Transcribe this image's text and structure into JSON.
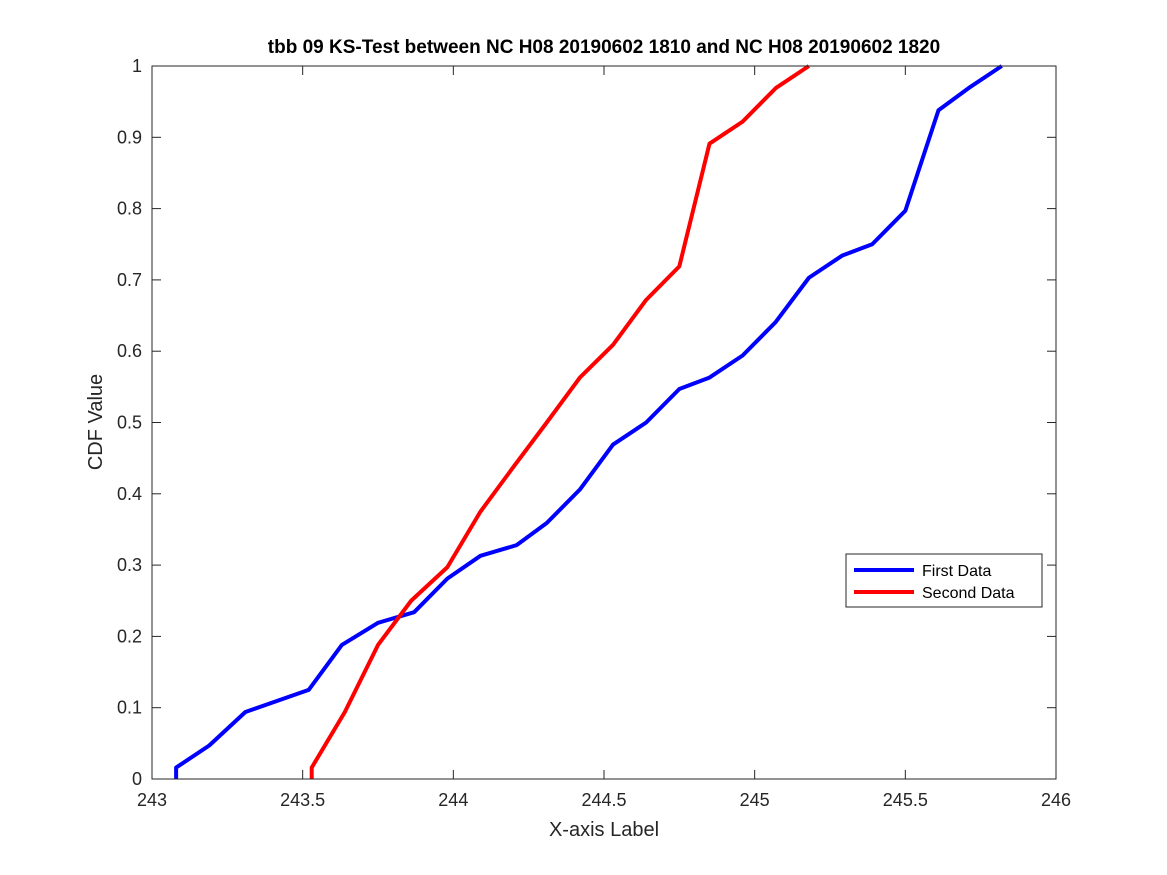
{
  "chart_data": {
    "type": "line",
    "title": "tbb 09 KS-Test between NC H08 20190602 1810 and NC H08 20190602 1820",
    "xlabel": "X-axis Label",
    "ylabel": "CDF Value",
    "xlim": [
      243,
      246
    ],
    "ylim": [
      0,
      1
    ],
    "xticks": [
      243,
      243.5,
      244,
      244.5,
      245,
      245.5,
      246
    ],
    "xtick_labels": [
      "243",
      "243.5",
      "244",
      "244.5",
      "245",
      "245.5",
      "246"
    ],
    "yticks": [
      0,
      0.1,
      0.2,
      0.3,
      0.4,
      0.5,
      0.6,
      0.7,
      0.8,
      0.9,
      1
    ],
    "ytick_labels": [
      "0",
      "0.1",
      "0.2",
      "0.3",
      "0.4",
      "0.5",
      "0.6",
      "0.7",
      "0.8",
      "0.9",
      "1"
    ],
    "grid": false,
    "legend_position": "right",
    "series": [
      {
        "name": "First Data",
        "color": "#0000ff",
        "x": [
          243.08,
          243.08,
          243.19,
          243.31,
          243.52,
          243.63,
          243.75,
          243.87,
          243.98,
          244.09,
          244.21,
          244.31,
          244.42,
          244.53,
          244.64,
          244.75,
          244.85,
          244.96,
          245.07,
          245.18,
          245.29,
          245.39,
          245.5,
          245.61,
          245.71,
          245.82
        ],
        "y": [
          0.0,
          0.016,
          0.047,
          0.094,
          0.125,
          0.188,
          0.219,
          0.234,
          0.281,
          0.313,
          0.328,
          0.359,
          0.406,
          0.469,
          0.5,
          0.547,
          0.563,
          0.594,
          0.641,
          0.703,
          0.734,
          0.75,
          0.797,
          0.938,
          0.969,
          1.0
        ]
      },
      {
        "name": "Second Data",
        "color": "#ff0000",
        "x": [
          243.53,
          243.53,
          243.64,
          243.75,
          243.86,
          243.98,
          244.09,
          244.2,
          244.31,
          244.42,
          244.53,
          244.64,
          244.75,
          244.85,
          244.96,
          245.07,
          245.18
        ],
        "y": [
          0.0,
          0.016,
          0.094,
          0.188,
          0.25,
          0.297,
          0.375,
          0.438,
          0.5,
          0.563,
          0.609,
          0.672,
          0.719,
          0.891,
          0.922,
          0.969,
          1.0
        ]
      }
    ]
  }
}
